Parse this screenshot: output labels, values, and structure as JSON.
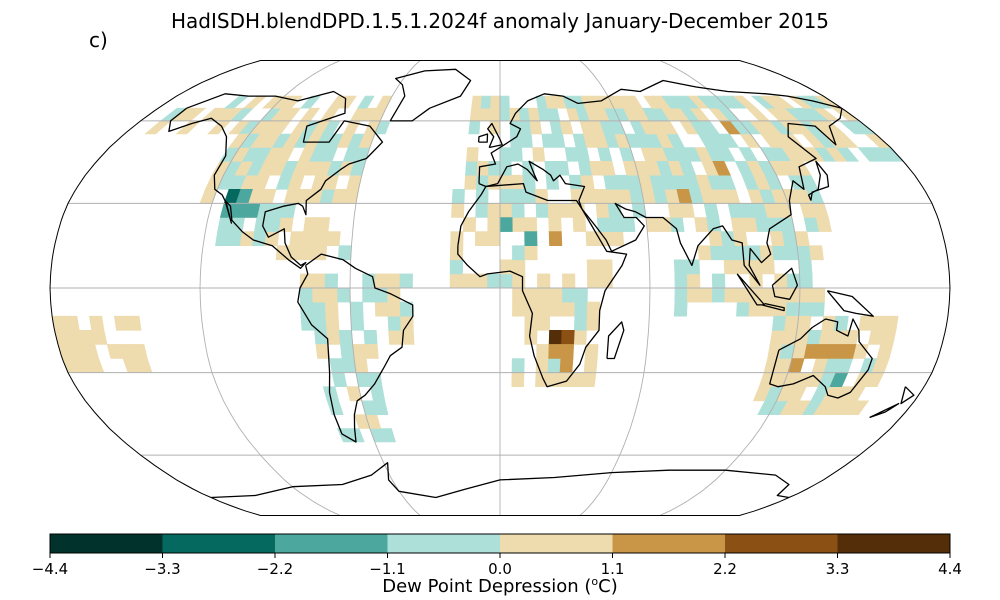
{
  "title": "HadISDH.blendDPD.1.5.1.2024f anomaly January-December 2015",
  "panel_label": "c)",
  "colorbar": {
    "label_prefix": "Dew Point Depression (",
    "label_sup": "o",
    "label_suffix": "C)",
    "ticks": [
      "−4.4",
      "−3.3",
      "−2.2",
      "−1.1",
      "0.0",
      "1.1",
      "2.2",
      "3.3",
      "4.4"
    ],
    "colors": [
      "#01332c",
      "#05695f",
      "#4ca89e",
      "#aee0da",
      "#eedbae",
      "#c89646",
      "#8b5014",
      "#542e08"
    ]
  },
  "map": {
    "projection": "Robinson",
    "graticule_color": "#b0b0b0",
    "coastline_color": "#000000",
    "cell_size_deg": 5
  }
}
